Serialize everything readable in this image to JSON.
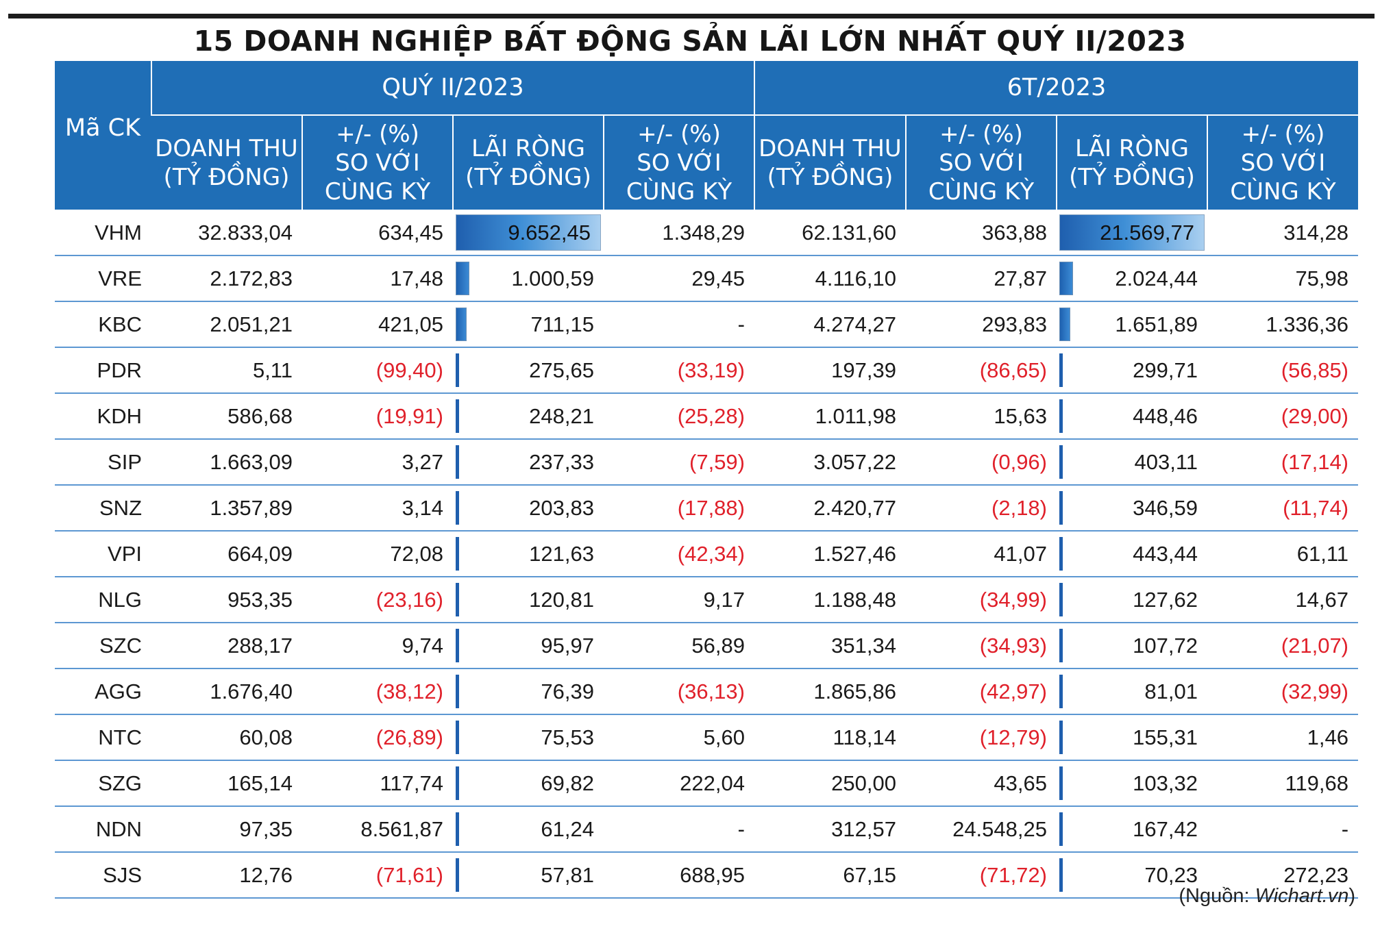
{
  "title": "15 DOANH NGHIỆP BẤT ĐỘNG SẢN LÃI LỚN NHẤT QUÝ II/2023",
  "header": {
    "code": "Mã CK",
    "group_q2": "QUÝ II/2023",
    "group_6t": "6T/2023",
    "rev_l1": "DOANH THU",
    "rev_l2": "(TỶ ĐỒNG)",
    "pct_l1": "+/- (%)",
    "pct_l2": "SO VỚI",
    "pct_l3": "CÙNG KỲ",
    "np_l1": "LÃI RÒNG",
    "np_l2": "(TỶ ĐỒNG)"
  },
  "rows": [
    [
      "VHM",
      "32.833,04",
      "634,45",
      "9.652,45",
      "1.348,29",
      "62.131,60",
      "363,88",
      "21.569,77",
      "314,28"
    ],
    [
      "VRE",
      "2.172,83",
      "17,48",
      "1.000,59",
      "29,45",
      "4.116,10",
      "27,87",
      "2.024,44",
      "75,98"
    ],
    [
      "KBC",
      "2.051,21",
      "421,05",
      "711,15",
      "-",
      "4.274,27",
      "293,83",
      "1.651,89",
      "1.336,36"
    ],
    [
      "PDR",
      "5,11",
      "(99,40)",
      "275,65",
      "(33,19)",
      "197,39",
      "(86,65)",
      "299,71",
      "(56,85)"
    ],
    [
      "KDH",
      "586,68",
      "(19,91)",
      "248,21",
      "(25,28)",
      "1.011,98",
      "15,63",
      "448,46",
      "(29,00)"
    ],
    [
      "SIP",
      "1.663,09",
      "3,27",
      "237,33",
      "(7,59)",
      "3.057,22",
      "(0,96)",
      "403,11",
      "(17,14)"
    ],
    [
      "SNZ",
      "1.357,89",
      "3,14",
      "203,83",
      "(17,88)",
      "2.420,77",
      "(2,18)",
      "346,59",
      "(11,74)"
    ],
    [
      "VPI",
      "664,09",
      "72,08",
      "121,63",
      "(42,34)",
      "1.527,46",
      "41,07",
      "443,44",
      "61,11"
    ],
    [
      "NLG",
      "953,35",
      "(23,16)",
      "120,81",
      "9,17",
      "1.188,48",
      "(34,99)",
      "127,62",
      "14,67"
    ],
    [
      "SZC",
      "288,17",
      "9,74",
      "95,97",
      "56,89",
      "351,34",
      "(34,93)",
      "107,72",
      "(21,07)"
    ],
    [
      "AGG",
      "1.676,40",
      "(38,12)",
      "76,39",
      "(36,13)",
      "1.865,86",
      "(42,97)",
      "81,01",
      "(32,99)"
    ],
    [
      "NTC",
      "60,08",
      "(26,89)",
      "75,53",
      "5,60",
      "118,14",
      "(12,79)",
      "155,31",
      "1,46"
    ],
    [
      "SZG",
      "165,14",
      "117,74",
      "69,82",
      "222,04",
      "250,00",
      "43,65",
      "103,32",
      "119,68"
    ],
    [
      "NDN",
      "97,35",
      "8.561,87",
      "61,24",
      "-",
      "312,57",
      "24.548,25",
      "167,42",
      "-"
    ],
    [
      "SJS",
      "12,76",
      "(71,61)",
      "57,81",
      "688,95",
      "67,15",
      "(71,72)",
      "70,23",
      "272,23"
    ]
  ],
  "source_prefix": "(Nguồn: ",
  "source_name": "Wichart.vn",
  "source_suffix": ")",
  "colors": {
    "header_bg": "#1f6eb6",
    "negative": "#e0202a",
    "row_line": "#5c97d2"
  }
}
